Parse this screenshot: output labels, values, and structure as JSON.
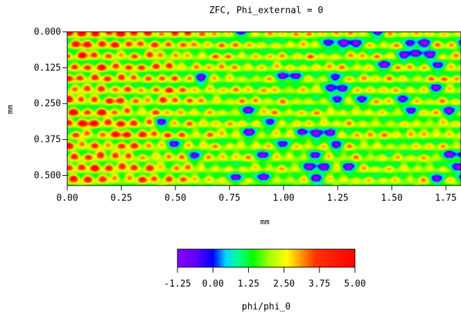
{
  "chart_data": {
    "type": "heatmap",
    "title": "ZFC, Phi_external = 0",
    "xlabel": "mm",
    "ylabel": "mm",
    "x_ticks": [
      "0.00",
      "0.25",
      "0.50",
      "0.75",
      "1.00",
      "1.25",
      "1.50",
      "1.75"
    ],
    "x_tick_values": [
      0.0,
      0.25,
      0.5,
      0.75,
      1.0,
      1.25,
      1.5,
      1.75
    ],
    "y_ticks": [
      "0.000",
      "0.125",
      "0.250",
      "0.375",
      "0.500"
    ],
    "y_tick_values": [
      0.0,
      0.125,
      0.25,
      0.375,
      0.5
    ],
    "xlim": [
      0.0,
      1.82
    ],
    "ylim": [
      0.0,
      0.535
    ],
    "y_inverted": true,
    "grid": false,
    "field": {
      "description_of_pattern": "dense vortex lattice; spots higher on left side",
      "baseline": 1.6,
      "spot_spacing_mm": 0.062,
      "row_spacing_mm": 0.039,
      "min_value": -1.25,
      "max_value": 5.0,
      "high_region_x_max_mm": 0.75,
      "low_spots_x_min_mm": 0.8
    },
    "colorbar": {
      "label": "phi/phi_0",
      "ticks": [
        "-1.25",
        "0.00",
        "1.25",
        "2.50",
        "3.75",
        "5.00"
      ],
      "tick_values": [
        -1.25,
        0.0,
        1.25,
        2.5,
        3.75,
        5.0
      ],
      "range": [
        -1.25,
        5.0
      ],
      "stops": [
        {
          "v": -1.25,
          "color": "#8800ff"
        },
        {
          "v": -0.55,
          "color": "#5a00ff"
        },
        {
          "v": 0.0,
          "color": "#0000ff"
        },
        {
          "v": 0.45,
          "color": "#00d8ff"
        },
        {
          "v": 0.9,
          "color": "#00ff90"
        },
        {
          "v": 1.4,
          "color": "#00ff00"
        },
        {
          "v": 2.0,
          "color": "#a8ff00"
        },
        {
          "v": 2.6,
          "color": "#ffff00"
        },
        {
          "v": 3.1,
          "color": "#ff9900"
        },
        {
          "v": 3.6,
          "color": "#ff3300"
        },
        {
          "v": 5.0,
          "color": "#ff0000"
        }
      ]
    }
  }
}
